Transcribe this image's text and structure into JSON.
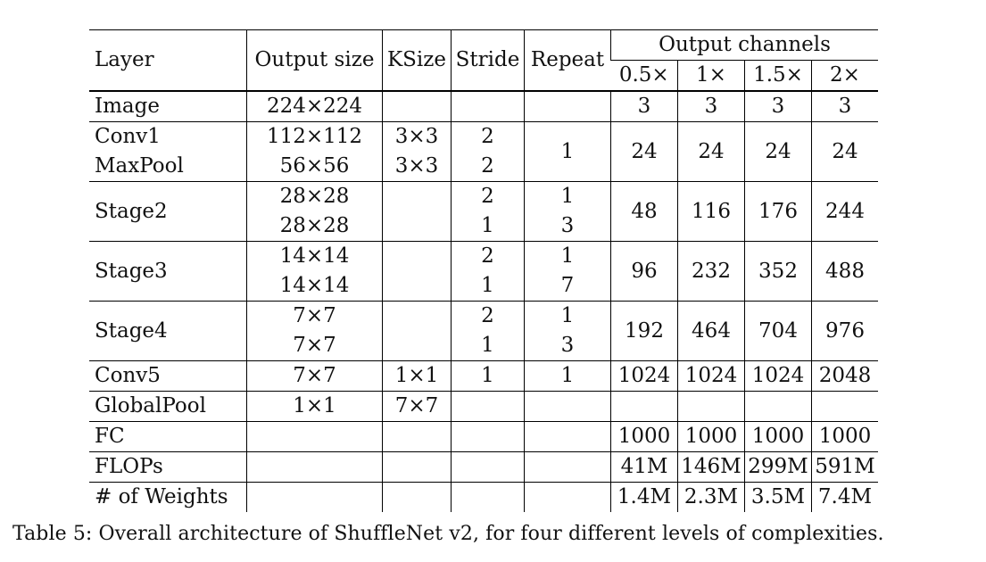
{
  "header": {
    "layer": "Layer",
    "output_size": "Output size",
    "ksize": "KSize",
    "stride": "Stride",
    "repeat": "Repeat",
    "output_channels": "Output channels",
    "scales": [
      "0.5×",
      "1×",
      "1.5×",
      "2×"
    ]
  },
  "rows": {
    "image": {
      "layer": "Image",
      "out": "224×224",
      "k": "",
      "s": "",
      "r": "",
      "c": [
        "3",
        "3",
        "3",
        "3"
      ]
    },
    "conv1": {
      "layer": "Conv1",
      "out": "112×112",
      "k": "3×3",
      "s": "2"
    },
    "maxpool": {
      "layer": "MaxPool",
      "out": "56×56",
      "k": "3×3",
      "s": "2"
    },
    "conv1_group": {
      "r": "1",
      "c": [
        "24",
        "24",
        "24",
        "24"
      ]
    },
    "stage2": {
      "layer": "Stage2",
      "out": [
        "28×28",
        "28×28"
      ],
      "s": [
        "2",
        "1"
      ],
      "r": [
        "1",
        "3"
      ],
      "c": [
        "48",
        "116",
        "176",
        "244"
      ]
    },
    "stage3": {
      "layer": "Stage3",
      "out": [
        "14×14",
        "14×14"
      ],
      "s": [
        "2",
        "1"
      ],
      "r": [
        "1",
        "7"
      ],
      "c": [
        "96",
        "232",
        "352",
        "488"
      ]
    },
    "stage4": {
      "layer": "Stage4",
      "out": [
        "7×7",
        "7×7"
      ],
      "s": [
        "2",
        "1"
      ],
      "r": [
        "1",
        "3"
      ],
      "c": [
        "192",
        "464",
        "704",
        "976"
      ]
    },
    "conv5": {
      "layer": "Conv5",
      "out": "7×7",
      "k": "1×1",
      "s": "1",
      "r": "1",
      "c": [
        "1024",
        "1024",
        "1024",
        "2048"
      ]
    },
    "globalpool": {
      "layer": "GlobalPool",
      "out": "1×1",
      "k": "7×7"
    },
    "fc": {
      "layer": "FC",
      "c": [
        "1000",
        "1000",
        "1000",
        "1000"
      ]
    },
    "flops": {
      "layer": "FLOPs",
      "c": [
        "41M",
        "146M",
        "299M",
        "591M"
      ]
    },
    "weights": {
      "layer": "# of Weights",
      "c": [
        "1.4M",
        "2.3M",
        "3.5M",
        "7.4M"
      ]
    }
  },
  "caption": "Table 5: Overall architecture of ShuffleNet v2, for four different levels of complexities."
}
